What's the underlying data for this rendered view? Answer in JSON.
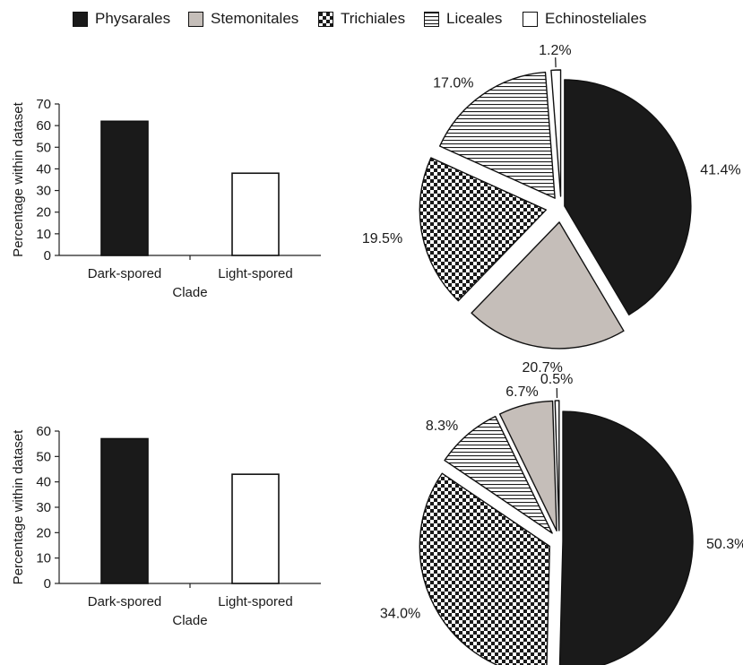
{
  "legend": {
    "entries": [
      {
        "name": "Physarales",
        "pattern": "solid-black"
      },
      {
        "name": "Stemonitales",
        "pattern": "solid-gray"
      },
      {
        "name": "Trichiales",
        "pattern": "checker"
      },
      {
        "name": "Liceales",
        "pattern": "horizontal-lines"
      },
      {
        "name": "Echinosteliales",
        "pattern": "white"
      }
    ]
  },
  "colors": {
    "dark": "#1a1a1a",
    "gray": "#c5beb9",
    "white": "#ffffff",
    "edge": "#111111"
  },
  "chart_data": [
    {
      "type": "bar",
      "categories": [
        "Dark-spored",
        "Light-spored"
      ],
      "values": [
        62,
        38
      ],
      "fills": [
        "dark",
        "white"
      ],
      "ylabel": "Percentage within dataset",
      "xlabel": "Clade",
      "ylim": [
        0,
        70
      ],
      "yticks": [
        "0",
        "10",
        "20",
        "30",
        "40",
        "50",
        "60",
        "70"
      ],
      "grid": false
    },
    {
      "type": "pie",
      "labels": [
        "Physarales",
        "Stemonitales",
        "Trichiales",
        "Liceales",
        "Echinosteliales"
      ],
      "values": [
        41.4,
        20.7,
        19.5,
        17.0,
        1.2
      ],
      "value_labels": [
        "41.4%",
        "20.7%",
        "19.5%",
        "17.0%",
        "1.2%"
      ],
      "patterns": [
        "solid-black",
        "solid-gray",
        "checker",
        "horizontal-lines",
        "white"
      ]
    },
    {
      "type": "bar",
      "categories": [
        "Dark-spored",
        "Light-spored"
      ],
      "values": [
        57,
        43
      ],
      "fills": [
        "dark",
        "white"
      ],
      "ylabel": "Percentage within dataset",
      "xlabel": "Clade",
      "ylim": [
        0,
        60
      ],
      "yticks": [
        "0",
        "10",
        "20",
        "30",
        "40",
        "50",
        "60"
      ],
      "grid": false
    },
    {
      "type": "pie",
      "labels": [
        "Physarales",
        "Trichiales",
        "Liceales",
        "Stemonitales",
        "Echinosteliales"
      ],
      "values": [
        50.3,
        34.0,
        8.3,
        6.7,
        0.5
      ],
      "value_labels": [
        "50.3%",
        "34.0%",
        "8.3%",
        "6.7%",
        "0.5%"
      ],
      "patterns": [
        "solid-black",
        "checker",
        "horizontal-lines",
        "solid-gray",
        "white"
      ]
    }
  ]
}
